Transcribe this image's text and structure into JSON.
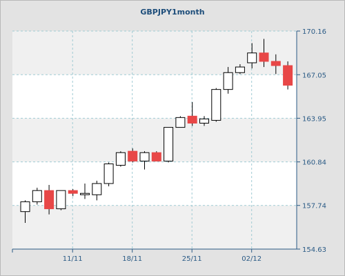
{
  "chart_data": {
    "type": "candlestick",
    "title": "GBPJPY1month",
    "y_ticks": [
      "154.63",
      "157.74",
      "160.84",
      "163.95",
      "167.05",
      "170.16"
    ],
    "ylim": [
      154.63,
      170.16
    ],
    "x_tick_labels": [
      {
        "label": "11/11",
        "index": 4
      },
      {
        "label": "18/11",
        "index": 9
      },
      {
        "label": "25/11",
        "index": 14
      },
      {
        "label": "02/12",
        "index": 19
      }
    ],
    "grid": true,
    "colors": {
      "up": "#ffffff",
      "down": "#e84747",
      "outline": "#000000",
      "grid": "#9fcbd3",
      "plot_bg": "#ffffff",
      "band": "#f0f0f0"
    },
    "candles": [
      {
        "open": 157.3,
        "high": 158.1,
        "low": 156.5,
        "close": 158.0
      },
      {
        "open": 158.0,
        "high": 159.0,
        "low": 157.8,
        "close": 158.8
      },
      {
        "open": 158.8,
        "high": 159.2,
        "low": 157.1,
        "close": 157.5
      },
      {
        "open": 157.5,
        "high": 158.8,
        "low": 157.4,
        "close": 158.8
      },
      {
        "open": 158.8,
        "high": 158.9,
        "low": 158.4,
        "close": 158.6
      },
      {
        "open": 158.6,
        "high": 159.3,
        "low": 158.2,
        "close": 158.6
      },
      {
        "open": 158.5,
        "high": 159.5,
        "low": 158.1,
        "close": 159.3
      },
      {
        "open": 159.3,
        "high": 160.8,
        "low": 159.1,
        "close": 160.7
      },
      {
        "open": 160.6,
        "high": 161.6,
        "low": 160.5,
        "close": 161.5
      },
      {
        "open": 161.6,
        "high": 161.8,
        "low": 160.8,
        "close": 160.9
      },
      {
        "open": 160.9,
        "high": 161.6,
        "low": 160.3,
        "close": 161.5
      },
      {
        "open": 161.5,
        "high": 161.6,
        "low": 160.9,
        "close": 160.9
      },
      {
        "open": 160.9,
        "high": 163.3,
        "low": 160.8,
        "close": 163.3
      },
      {
        "open": 163.3,
        "high": 164.1,
        "low": 163.3,
        "close": 164.0
      },
      {
        "open": 164.1,
        "high": 165.1,
        "low": 163.4,
        "close": 163.6
      },
      {
        "open": 163.6,
        "high": 164.1,
        "low": 163.4,
        "close": 163.9
      },
      {
        "open": 163.8,
        "high": 166.1,
        "low": 163.7,
        "close": 166.0
      },
      {
        "open": 166.0,
        "high": 167.6,
        "low": 165.7,
        "close": 167.2
      },
      {
        "open": 167.2,
        "high": 167.8,
        "low": 167.1,
        "close": 167.6
      },
      {
        "open": 167.9,
        "high": 169.3,
        "low": 167.5,
        "close": 168.6
      },
      {
        "open": 168.6,
        "high": 169.6,
        "low": 167.6,
        "close": 168.0
      },
      {
        "open": 168.0,
        "high": 168.5,
        "low": 167.1,
        "close": 167.7
      },
      {
        "open": 167.7,
        "high": 168.0,
        "low": 166.0,
        "close": 166.3
      }
    ]
  }
}
